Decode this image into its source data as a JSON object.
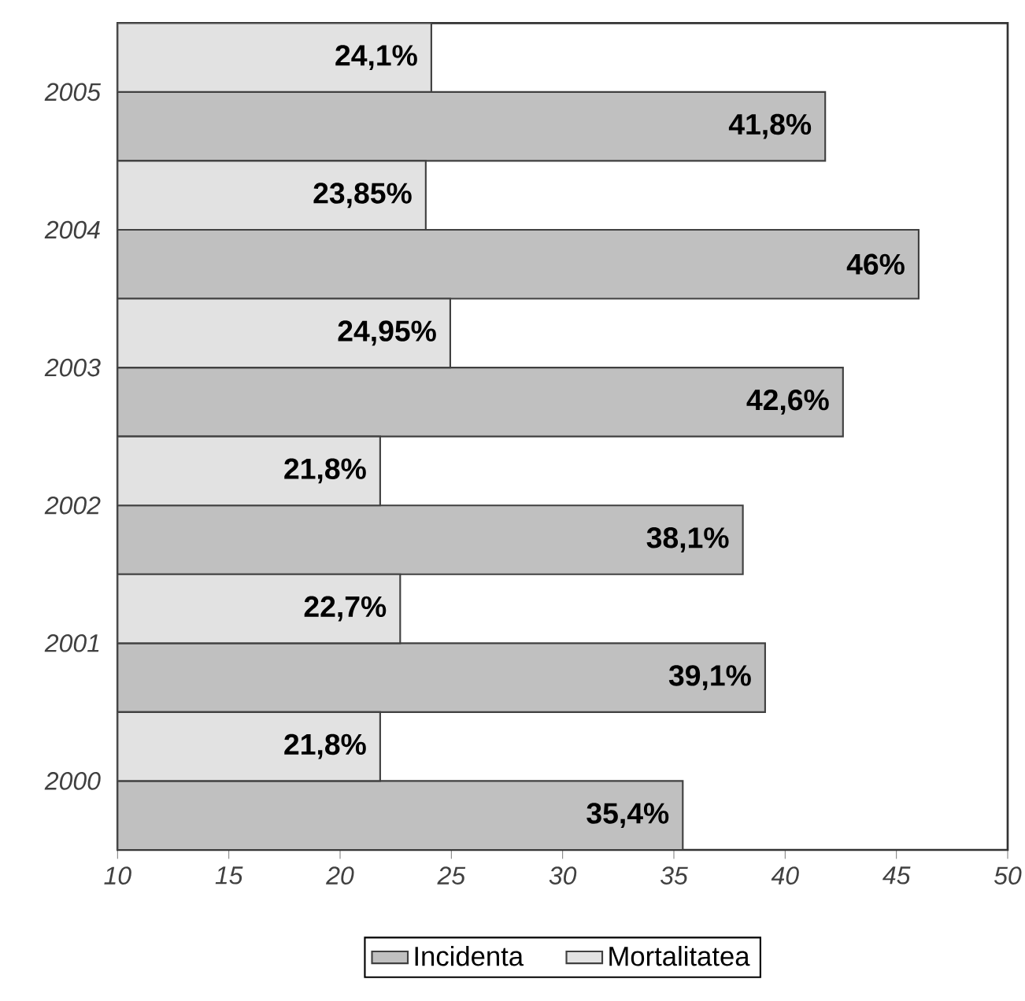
{
  "chart_data": {
    "type": "bar",
    "orientation": "horizontal",
    "categories": [
      "2005",
      "2004",
      "2003",
      "2002",
      "2001",
      "2000"
    ],
    "series": [
      {
        "name": "Incidenta",
        "color": "#c0c0c0",
        "values": [
          41.8,
          46,
          42.6,
          38.1,
          39.1,
          35.4
        ],
        "value_labels": [
          "41,8%",
          "46%",
          "42,6%",
          "38,1%",
          "39,1%",
          "35,4%"
        ]
      },
      {
        "name": "Mortalitatea",
        "color": "#e2e2e2",
        "values": [
          24.1,
          23.85,
          24.95,
          21.8,
          22.7,
          21.8
        ],
        "value_labels": [
          "24,1%",
          "23,85%",
          "24,95%",
          "21,8%",
          "22,7%",
          "21,8%"
        ]
      }
    ],
    "xlim": [
      10,
      50
    ],
    "xticks": [
      10,
      15,
      20,
      25,
      30,
      35,
      40,
      45,
      50
    ],
    "grid": false,
    "legend": "bottom"
  }
}
